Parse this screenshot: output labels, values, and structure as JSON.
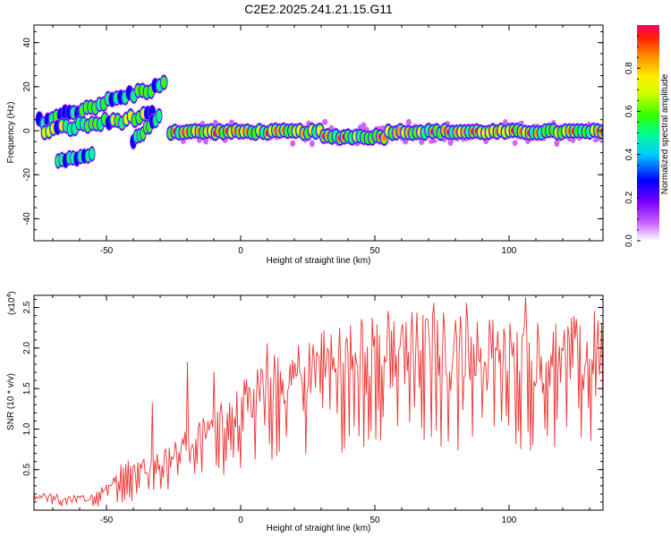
{
  "title": "C2E2.2025.241.21.15.G11",
  "chart_data": [
    {
      "type": "heatmap",
      "xlabel": "Height of straight line (km)",
      "ylabel": "Frequency (Hz)",
      "xlim": [
        -77,
        135
      ],
      "ylim": [
        -50,
        48
      ],
      "xticks": [
        "-50",
        "0",
        "50",
        "100"
      ],
      "xtick_values": [
        -50,
        0,
        50,
        100
      ],
      "yticks": [
        "-40",
        "-20",
        "0",
        "20",
        "40"
      ],
      "ytick_values": [
        -40,
        -20,
        0,
        20,
        40
      ],
      "colorbar": {
        "label": "Normalized spectral amplitude",
        "range": [
          0,
          1
        ],
        "ticks": [
          "0.0",
          "0.2",
          "0.4",
          "0.6",
          "0.8"
        ],
        "tick_values": [
          0.0,
          0.2,
          0.4,
          0.6,
          0.8
        ],
        "colormap": [
          "#ffffff",
          "#cc66ff",
          "#7700ff",
          "#0000ff",
          "#00ccff",
          "#00ff88",
          "#33ff00",
          "#ccff00",
          "#ffee00",
          "#ff8800",
          "#ff2200",
          "#ff0066"
        ]
      },
      "features": [
        {
          "name": "main-track",
          "x": [
            -25,
            135
          ],
          "freq_hz": -1,
          "peak_amplitude": 1.0
        },
        {
          "name": "upper-branch",
          "x": [
            -75,
            -28
          ],
          "freq_hz": [
            4,
            21
          ]
        },
        {
          "name": "middle-branch",
          "x": [
            -73,
            -32
          ],
          "freq_hz": [
            0,
            8
          ]
        },
        {
          "name": "lower-branch",
          "x": [
            -68,
            -55
          ],
          "freq_hz": [
            -14,
            -11
          ]
        }
      ]
    },
    {
      "type": "line",
      "xlabel": "Height of straight line (km)",
      "ylabel": "SNR (10 * v/v)",
      "scale_label": "(x10",
      "scale_exponent": "4",
      "xlim": [
        -77,
        135
      ],
      "ylim": [
        0,
        2.65
      ],
      "xticks": [
        "-50",
        "0",
        "50",
        "100"
      ],
      "xtick_values": [
        -50,
        0,
        50,
        100
      ],
      "yticks": [
        "0.5",
        "1.0",
        "1.5",
        "2.0",
        "2.5"
      ],
      "ytick_values": [
        0.5,
        1.0,
        1.5,
        2.0,
        2.5
      ],
      "series": [
        {
          "name": "SNR",
          "color": "#ee3333",
          "trend_x": [
            -77,
            -65,
            -55,
            -45,
            -35,
            -25,
            -15,
            -5,
            5,
            15,
            25,
            35,
            45,
            55,
            65,
            75,
            85,
            95,
            105,
            115,
            125,
            135
          ],
          "trend_y": [
            0.15,
            0.1,
            0.12,
            0.35,
            0.45,
            0.55,
            0.75,
            0.95,
            1.15,
            1.3,
            1.45,
            1.55,
            1.6,
            1.62,
            1.62,
            1.62,
            1.6,
            1.6,
            1.58,
            1.55,
            1.55,
            1.55
          ],
          "peaks_x": [
            -33,
            -20,
            -10,
            10,
            45,
            68,
            72,
            84,
            106,
            132
          ],
          "peaks_y": [
            1.32,
            1.82,
            1.7,
            2.05,
            2.35,
            2.4,
            2.55,
            2.55,
            2.62,
            2.45
          ]
        }
      ]
    }
  ]
}
